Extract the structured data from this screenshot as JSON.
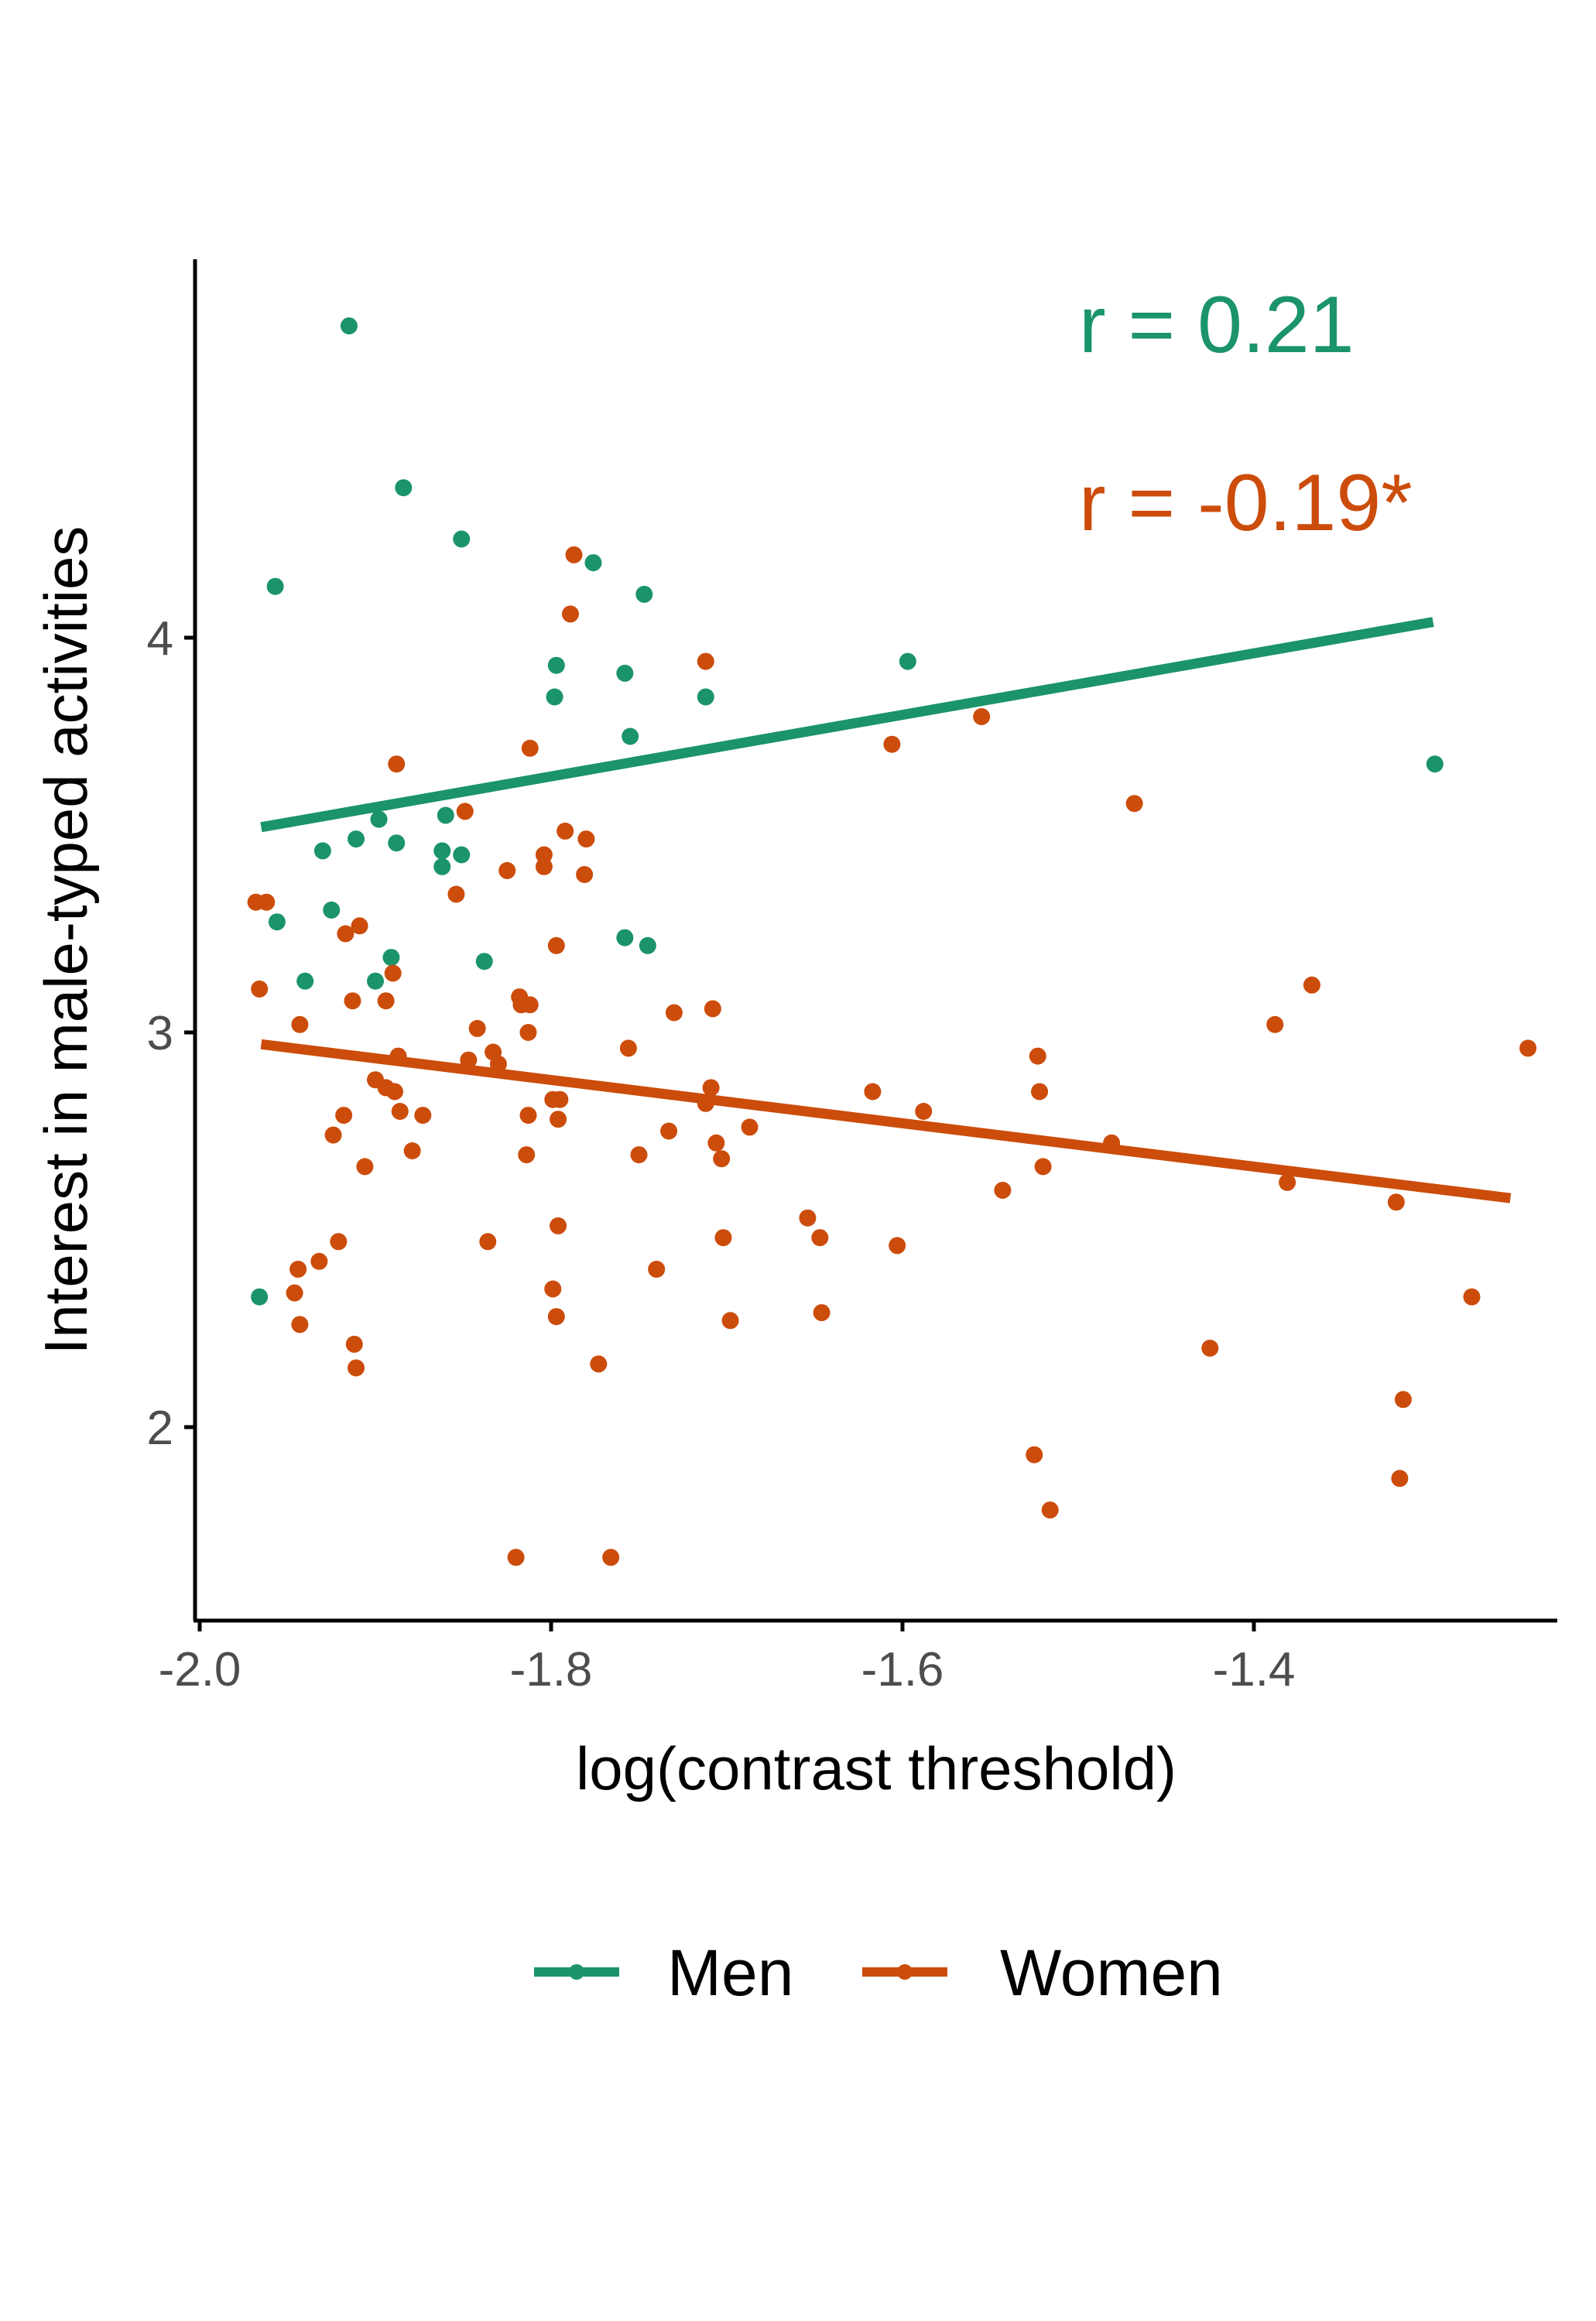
{
  "chart_data": {
    "type": "scatter",
    "xlabel": "log(contrast threshold)",
    "ylabel": "Interest in male-typed activities",
    "xlim": [
      -2.0,
      -1.13
    ],
    "ylim": [
      1.52,
      4.98
    ],
    "xticks": [
      "-2.0",
      "-1.8",
      "-1.6",
      "-1.4"
    ],
    "yticks": [
      "2",
      "3",
      "4"
    ],
    "grid": false,
    "legend_position": "bottom",
    "colors": {
      "Men": "#1b9469",
      "Women": "#cc4c0b"
    },
    "annotations": [
      {
        "text": "r = 0.21",
        "series": "Men"
      },
      {
        "text": "r = -0.19*",
        "series": "Women"
      }
    ],
    "series": [
      {
        "name": "Men",
        "color": "#1b9469",
        "points": [
          [
            -1.915,
            4.79
          ],
          [
            -1.884,
            4.38
          ],
          [
            -1.851,
            4.25
          ],
          [
            -1.776,
            4.19
          ],
          [
            -1.957,
            4.13
          ],
          [
            -1.747,
            4.11
          ],
          [
            -1.797,
            3.93
          ],
          [
            -1.758,
            3.91
          ],
          [
            -1.798,
            3.85
          ],
          [
            -1.712,
            3.85
          ],
          [
            -1.597,
            3.94
          ],
          [
            -1.755,
            3.75
          ],
          [
            -1.86,
            3.55
          ],
          [
            -1.898,
            3.54
          ],
          [
            -1.911,
            3.49
          ],
          [
            -1.888,
            3.48
          ],
          [
            -1.93,
            3.46
          ],
          [
            -1.862,
            3.46
          ],
          [
            -1.851,
            3.45
          ],
          [
            -1.862,
            3.42
          ],
          [
            -1.925,
            3.31
          ],
          [
            -1.956,
            3.28
          ],
          [
            -1.758,
            3.24
          ],
          [
            -1.745,
            3.22
          ],
          [
            -1.891,
            3.19
          ],
          [
            -1.838,
            3.18
          ],
          [
            -1.94,
            3.13
          ],
          [
            -1.9,
            3.13
          ],
          [
            -1.297,
            3.68
          ],
          [
            -1.966,
            2.33
          ]
        ],
        "trend": {
          "x": [
            -1.965,
            -1.298
          ],
          "y": [
            3.52,
            4.04
          ]
        }
      },
      {
        "name": "Women",
        "color": "#cc4c0b",
        "points": [
          [
            -1.787,
            4.21
          ],
          [
            -1.789,
            4.06
          ],
          [
            -1.712,
            3.94
          ],
          [
            -1.555,
            3.8
          ],
          [
            -1.812,
            3.72
          ],
          [
            -1.606,
            3.73
          ],
          [
            -1.888,
            3.68
          ],
          [
            -1.468,
            3.58
          ],
          [
            -1.849,
            3.56
          ],
          [
            -1.792,
            3.51
          ],
          [
            -1.78,
            3.49
          ],
          [
            -1.804,
            3.45
          ],
          [
            -1.804,
            3.42
          ],
          [
            -1.825,
            3.41
          ],
          [
            -1.781,
            3.4
          ],
          [
            -1.854,
            3.35
          ],
          [
            -1.968,
            3.33
          ],
          [
            -1.962,
            3.33
          ],
          [
            -1.909,
            3.27
          ],
          [
            -1.917,
            3.25
          ],
          [
            -1.797,
            3.22
          ],
          [
            -1.89,
            3.15
          ],
          [
            -1.966,
            3.11
          ],
          [
            -1.818,
            3.09
          ],
          [
            -1.913,
            3.08
          ],
          [
            -1.894,
            3.08
          ],
          [
            -1.817,
            3.07
          ],
          [
            -1.812,
            3.07
          ],
          [
            -1.708,
            3.06
          ],
          [
            -1.73,
            3.05
          ],
          [
            -1.943,
            3.02
          ],
          [
            -1.842,
            3.01
          ],
          [
            -1.813,
            3.0
          ],
          [
            -1.388,
            3.02
          ],
          [
            -1.367,
            3.12
          ],
          [
            -1.756,
            2.96
          ],
          [
            -1.244,
            2.96
          ],
          [
            -1.833,
            2.95
          ],
          [
            -1.887,
            2.94
          ],
          [
            -1.847,
            2.93
          ],
          [
            -1.83,
            2.92
          ],
          [
            -1.523,
            2.94
          ],
          [
            -1.9,
            2.88
          ],
          [
            -1.894,
            2.86
          ],
          [
            -1.709,
            2.86
          ],
          [
            -1.889,
            2.85
          ],
          [
            -1.617,
            2.85
          ],
          [
            -1.522,
            2.85
          ],
          [
            -1.799,
            2.83
          ],
          [
            -1.795,
            2.83
          ],
          [
            -1.712,
            2.82
          ],
          [
            -1.918,
            2.79
          ],
          [
            -1.886,
            2.8
          ],
          [
            -1.873,
            2.79
          ],
          [
            -1.813,
            2.79
          ],
          [
            -1.796,
            2.78
          ],
          [
            -1.588,
            2.8
          ],
          [
            -1.733,
            2.75
          ],
          [
            -1.687,
            2.76
          ],
          [
            -1.924,
            2.74
          ],
          [
            -1.706,
            2.72
          ],
          [
            -1.481,
            2.72
          ],
          [
            -1.879,
            2.7
          ],
          [
            -1.814,
            2.69
          ],
          [
            -1.75,
            2.69
          ],
          [
            -1.703,
            2.68
          ],
          [
            -1.906,
            2.66
          ],
          [
            -1.52,
            2.66
          ],
          [
            -1.543,
            2.6
          ],
          [
            -1.381,
            2.62
          ],
          [
            -1.319,
            2.57
          ],
          [
            -1.654,
            2.53
          ],
          [
            -1.796,
            2.51
          ],
          [
            -1.702,
            2.48
          ],
          [
            -1.647,
            2.48
          ],
          [
            -1.921,
            2.47
          ],
          [
            -1.836,
            2.47
          ],
          [
            -1.603,
            2.46
          ],
          [
            -1.932,
            2.42
          ],
          [
            -1.944,
            2.4
          ],
          [
            -1.74,
            2.4
          ],
          [
            -1.799,
            2.35
          ],
          [
            -1.946,
            2.34
          ],
          [
            -1.797,
            2.28
          ],
          [
            -1.646,
            2.29
          ],
          [
            -1.276,
            2.33
          ],
          [
            -1.943,
            2.26
          ],
          [
            -1.698,
            2.27
          ],
          [
            -1.912,
            2.21
          ],
          [
            -1.425,
            2.2
          ],
          [
            -1.911,
            2.15
          ],
          [
            -1.773,
            2.16
          ],
          [
            -1.315,
            2.07
          ],
          [
            -1.525,
            1.93
          ],
          [
            -1.516,
            1.79
          ],
          [
            -1.317,
            1.87
          ],
          [
            -1.82,
            1.67
          ],
          [
            -1.766,
            1.67
          ]
        ],
        "trend": {
          "x": [
            -1.965,
            -1.254
          ],
          "y": [
            2.97,
            2.58
          ]
        }
      }
    ]
  }
}
